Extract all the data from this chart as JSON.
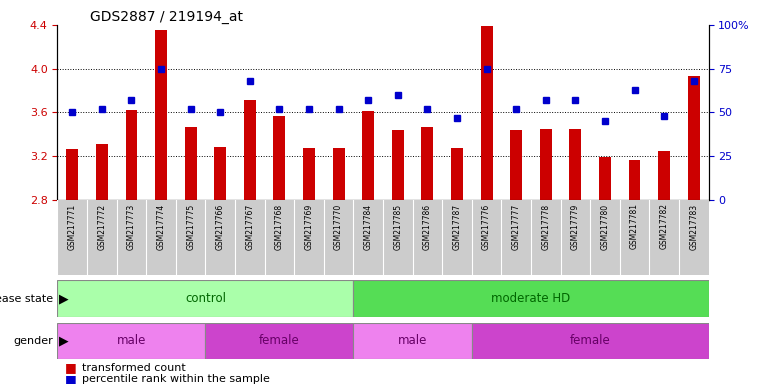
{
  "title": "GDS2887 / 219194_at",
  "samples": [
    "GSM217771",
    "GSM217772",
    "GSM217773",
    "GSM217774",
    "GSM217775",
    "GSM217766",
    "GSM217767",
    "GSM217768",
    "GSM217769",
    "GSM217770",
    "GSM217784",
    "GSM217785",
    "GSM217786",
    "GSM217787",
    "GSM217776",
    "GSM217777",
    "GSM217778",
    "GSM217779",
    "GSM217780",
    "GSM217781",
    "GSM217782",
    "GSM217783"
  ],
  "transformed_count": [
    3.26,
    3.31,
    3.62,
    4.35,
    3.47,
    3.28,
    3.71,
    3.57,
    3.27,
    3.27,
    3.61,
    3.44,
    3.47,
    3.27,
    4.39,
    3.44,
    3.45,
    3.45,
    3.19,
    3.16,
    3.25,
    3.93
  ],
  "percentile_rank": [
    50,
    52,
    57,
    75,
    52,
    50,
    68,
    52,
    52,
    52,
    57,
    60,
    52,
    47,
    75,
    52,
    57,
    57,
    45,
    63,
    48,
    68
  ],
  "bar_color": "#CC0000",
  "square_color": "#0000CC",
  "y_min": 2.8,
  "y_max": 4.4,
  "y_ticks": [
    2.8,
    3.2,
    3.6,
    4.0,
    4.4
  ],
  "right_y_ticks": [
    0,
    25,
    50,
    75,
    100
  ],
  "disease_state": [
    {
      "label": "control",
      "start": 0,
      "end": 10,
      "color": "#AAFFAA"
    },
    {
      "label": "moderate HD",
      "start": 10,
      "end": 22,
      "color": "#55DD55"
    }
  ],
  "gender": [
    {
      "label": "male",
      "start": 0,
      "end": 5,
      "color": "#EE82EE"
    },
    {
      "label": "female",
      "start": 5,
      "end": 10,
      "color": "#CC44CC"
    },
    {
      "label": "male",
      "start": 10,
      "end": 14,
      "color": "#EE82EE"
    },
    {
      "label": "female",
      "start": 14,
      "end": 22,
      "color": "#CC44CC"
    }
  ]
}
